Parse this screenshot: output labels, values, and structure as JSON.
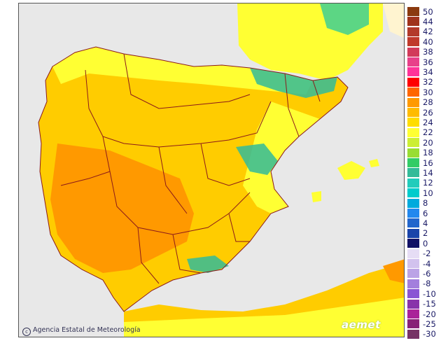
{
  "credit": "Agencia Estatal de Meteorología",
  "credit_symbol": "c",
  "logo": "aemet",
  "colors": {
    "sea": "#e8e8e8",
    "land_yellow": "#ffff33",
    "land_orange": "#ffcc00",
    "land_red": "#ff9900",
    "border": "#8b1a1a"
  },
  "legend": [
    {
      "label": "50",
      "color": "#8b3a0f"
    },
    {
      "label": "44",
      "color": "#a0331c"
    },
    {
      "label": "42",
      "color": "#b33a2a"
    },
    {
      "label": "40",
      "color": "#c0392b"
    },
    {
      "label": "38",
      "color": "#d23a5a"
    },
    {
      "label": "36",
      "color": "#e8408a"
    },
    {
      "label": "34",
      "color": "#ff3399"
    },
    {
      "label": "32",
      "color": "#ff0000"
    },
    {
      "label": "30",
      "color": "#ff6600"
    },
    {
      "label": "28",
      "color": "#ff9900"
    },
    {
      "label": "26",
      "color": "#ffbb00"
    },
    {
      "label": "24",
      "color": "#ffdd00"
    },
    {
      "label": "22",
      "color": "#ffff33"
    },
    {
      "label": "20",
      "color": "#ccee33"
    },
    {
      "label": "18",
      "color": "#99dd33"
    },
    {
      "label": "16",
      "color": "#33cc66"
    },
    {
      "label": "14",
      "color": "#33bb99"
    },
    {
      "label": "12",
      "color": "#22ccbb"
    },
    {
      "label": "10",
      "color": "#00cccc"
    },
    {
      "label": "8",
      "color": "#00aadd"
    },
    {
      "label": "6",
      "color": "#2288ee"
    },
    {
      "label": "4",
      "color": "#2266cc"
    },
    {
      "label": "2",
      "color": "#1a44aa"
    },
    {
      "label": "0",
      "color": "#111166"
    },
    {
      "label": "-2",
      "color": "#e6ddf5"
    },
    {
      "label": "-4",
      "color": "#d2c2ee"
    },
    {
      "label": "-6",
      "color": "#bba3e6"
    },
    {
      "label": "-8",
      "color": "#a37fdd"
    },
    {
      "label": "-10",
      "color": "#8a55d4"
    },
    {
      "label": "-15",
      "color": "#8833aa"
    },
    {
      "label": "-20",
      "color": "#aa2299"
    },
    {
      "label": "-25",
      "color": "#882277"
    },
    {
      "label": "-30",
      "color": "#773366"
    }
  ]
}
